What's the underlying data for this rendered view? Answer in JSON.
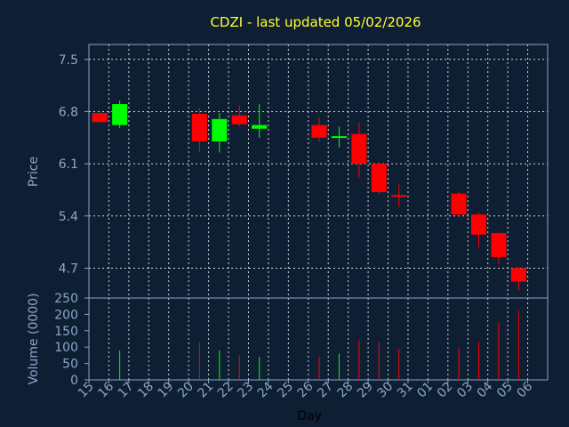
{
  "chart_data": {
    "type": "candlestick",
    "title": "CDZI - last updated 05/02/2026",
    "xlabel": "Day",
    "price_panel": {
      "ylabel": "Price",
      "ylim": [
        4.3,
        7.7
      ],
      "yticks": [
        "7.5",
        "6.8",
        "6.1",
        "5.4",
        "4.7"
      ],
      "ytick_values": [
        7.5,
        6.8,
        6.1,
        5.4,
        4.7
      ],
      "grid": true
    },
    "volume_panel": {
      "ylabel": "Volume (0000)",
      "ylim": [
        0,
        250
      ],
      "yticks": [
        "250",
        "200",
        "150",
        "100",
        "50",
        "0"
      ],
      "ytick_values": [
        250,
        200,
        150,
        100,
        50,
        0
      ]
    },
    "x_ticks": [
      "15",
      "16",
      "17",
      "18",
      "19",
      "20",
      "21",
      "22",
      "23",
      "24",
      "25",
      "26",
      "27",
      "28",
      "29",
      "30",
      "31",
      "01",
      "02",
      "03",
      "04",
      "05",
      "06"
    ],
    "candles": [
      {
        "day": "15",
        "open": 6.78,
        "close": 6.66,
        "high": 6.79,
        "low": 6.65,
        "volume": 0,
        "up": false
      },
      {
        "day": "16",
        "open": 6.62,
        "close": 6.9,
        "high": 6.95,
        "low": 6.58,
        "volume": 90,
        "up": true
      },
      {
        "day": "20",
        "open": 6.77,
        "close": 6.4,
        "high": 6.85,
        "low": 6.25,
        "volume": 115,
        "up": false
      },
      {
        "day": "21",
        "open": 6.4,
        "close": 6.7,
        "high": 6.78,
        "low": 6.25,
        "volume": 90,
        "up": true
      },
      {
        "day": "22",
        "open": 6.75,
        "close": 6.63,
        "high": 6.88,
        "low": 6.6,
        "volume": 75,
        "up": false
      },
      {
        "day": "23",
        "open": 6.57,
        "close": 6.62,
        "high": 6.9,
        "low": 6.45,
        "volume": 70,
        "up": true
      },
      {
        "day": "26",
        "open": 6.62,
        "close": 6.45,
        "high": 6.72,
        "low": 6.4,
        "volume": 70,
        "up": false
      },
      {
        "day": "27",
        "open": 6.45,
        "close": 6.47,
        "high": 6.6,
        "low": 6.32,
        "volume": 80,
        "up": true
      },
      {
        "day": "28",
        "open": 6.5,
        "close": 6.1,
        "high": 6.65,
        "low": 5.92,
        "volume": 120,
        "up": false
      },
      {
        "day": "29",
        "open": 6.1,
        "close": 5.72,
        "high": 6.12,
        "low": 5.7,
        "volume": 115,
        "up": false
      },
      {
        "day": "30",
        "open": 5.68,
        "close": 5.68,
        "high": 5.82,
        "low": 5.52,
        "volume": 95,
        "up": false
      },
      {
        "day": "02",
        "open": 5.7,
        "close": 5.42,
        "high": 5.73,
        "low": 5.38,
        "volume": 100,
        "up": false
      },
      {
        "day": "03",
        "open": 5.42,
        "close": 5.15,
        "high": 5.45,
        "low": 4.98,
        "volume": 115,
        "up": false
      },
      {
        "day": "04",
        "open": 5.17,
        "close": 4.85,
        "high": 5.18,
        "low": 4.75,
        "volume": 175,
        "up": false
      },
      {
        "day": "05",
        "open": 4.7,
        "close": 4.52,
        "high": 4.72,
        "low": 4.4,
        "volume": 210,
        "up": false
      }
    ],
    "colors": {
      "background": "#0f1f33",
      "up": "#00ff00",
      "down": "#ff0000",
      "title": "#ffff33",
      "axis_text": "#8aa6c8",
      "grid": "#ffffff"
    }
  }
}
